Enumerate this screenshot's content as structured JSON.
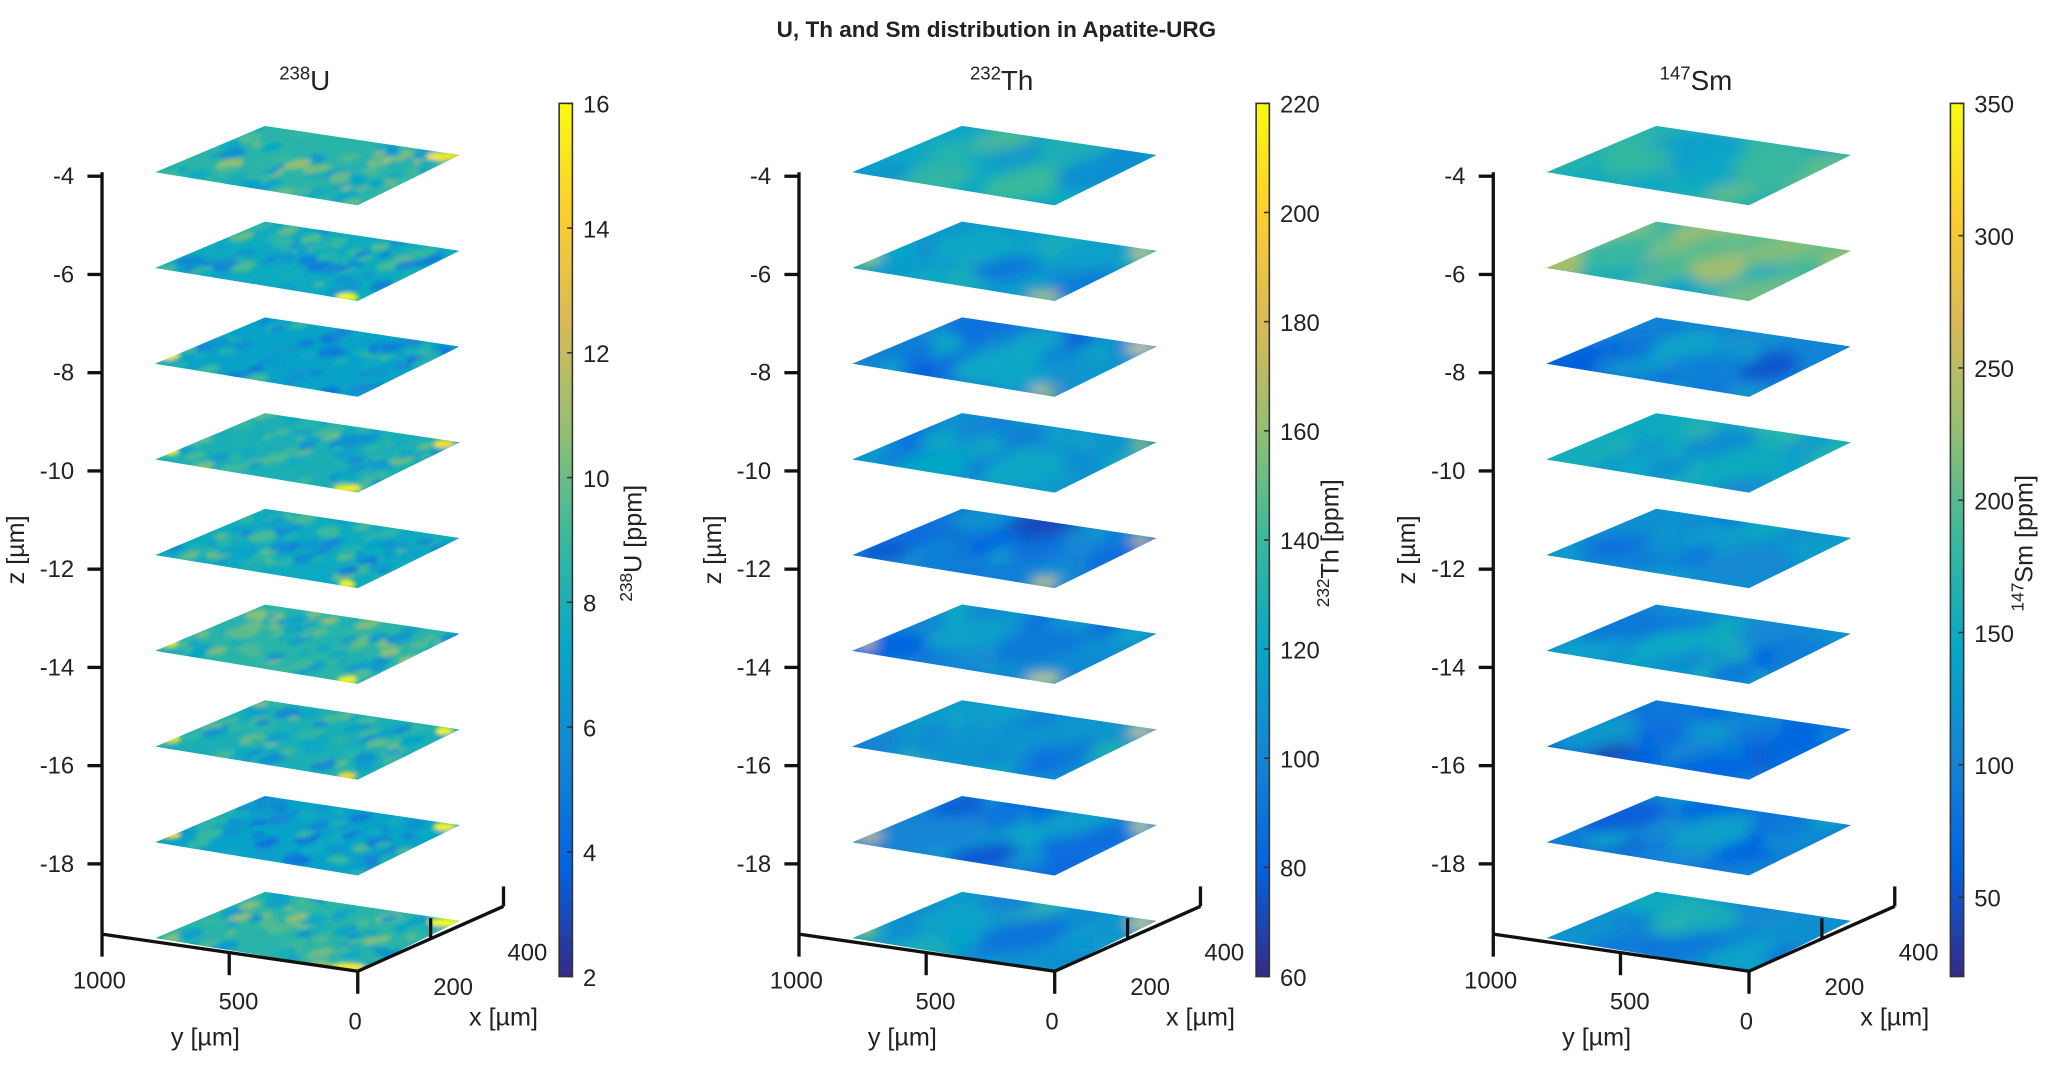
{
  "chart_data": {
    "type": "heatmap",
    "title": "U, Th and Sm distribution in Apatite-URG",
    "z_levels": [
      -3.9,
      -5.85,
      -7.8,
      -9.75,
      -11.7,
      -13.65,
      -15.6,
      -17.55,
      -19.4
    ],
    "panels": [
      {
        "title_sup": "238",
        "title_main": "U",
        "zlabel": "z [µm]",
        "ylabel": "y [µm]",
        "xlabel": "x [µm]",
        "z_ticks": [
          "-4",
          "-6",
          "-8",
          "-10",
          "-12",
          "-14",
          "-16",
          "-18"
        ],
        "z_tick_values": [
          -4,
          -6,
          -8,
          -10,
          -12,
          -14,
          -16,
          -18
        ],
        "y_ticks": [
          "1000",
          "500",
          "0"
        ],
        "x_ticks": [
          "200",
          "400"
        ],
        "colorbar": {
          "label_sup": "238",
          "label_main": "U [ppm]",
          "range": [
            2,
            16
          ],
          "ticks": [
            2,
            4,
            6,
            8,
            10,
            12,
            14,
            16
          ]
        },
        "slab_mean_values": [
          8.5,
          7.5,
          7.0,
          8.0,
          7.5,
          8.5,
          8.0,
          7.0,
          8.5
        ],
        "texture": "fine",
        "edge_hotspots": true
      },
      {
        "title_sup": "232",
        "title_main": "Th",
        "zlabel": "z [µm]",
        "ylabel": "y [µm]",
        "xlabel": "x [µm]",
        "z_ticks": [
          "-4",
          "-6",
          "-8",
          "-10",
          "-12",
          "-14",
          "-16",
          "-18"
        ],
        "z_tick_values": [
          -4,
          -6,
          -8,
          -10,
          -12,
          -14,
          -16,
          -18
        ],
        "y_ticks": [
          "1000",
          "500",
          "0"
        ],
        "x_ticks": [
          "200",
          "400"
        ],
        "colorbar": {
          "label_sup": "232",
          "label_main": "Th [ppm]",
          "range": [
            60,
            220
          ],
          "ticks": [
            60,
            80,
            100,
            120,
            140,
            160,
            180,
            200,
            220
          ]
        },
        "slab_mean_values": [
          120,
          112,
          100,
          110,
          95,
          102,
          110,
          98,
          112
        ],
        "texture": "smooth",
        "edge_hotspots": true
      },
      {
        "title_sup": "147",
        "title_main": "Sm",
        "zlabel": "z [µm]",
        "ylabel": "y [µm]",
        "xlabel": "x [µm]",
        "z_ticks": [
          "-4",
          "-6",
          "-8",
          "-10",
          "-12",
          "-14",
          "-16",
          "-18"
        ],
        "z_tick_values": [
          -4,
          -6,
          -8,
          -10,
          -12,
          -14,
          -16,
          -18
        ],
        "y_ticks": [
          "1000",
          "500",
          "0"
        ],
        "x_ticks": [
          "200",
          "400"
        ],
        "colorbar": {
          "label_sup": "147",
          "label_main": "Sm [ppm]",
          "range": [
            20,
            350
          ],
          "ticks": [
            50,
            100,
            150,
            200,
            250,
            300,
            350
          ]
        },
        "slab_mean_values": [
          170,
          190,
          100,
          150,
          110,
          115,
          85,
          95,
          120
        ],
        "texture": "smooth",
        "edge_hotspots": false
      }
    ]
  }
}
